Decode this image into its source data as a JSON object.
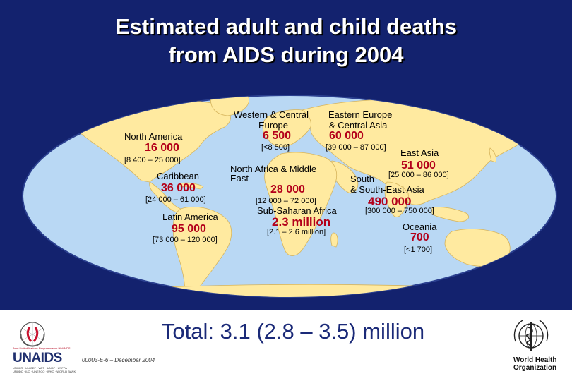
{
  "title": {
    "line1": "Estimated adult and child deaths",
    "line2": "from AIDS during 2004"
  },
  "regions": {
    "north_america": {
      "name": "North America",
      "value": "16 000",
      "range": "[8 400 – 25 000]"
    },
    "caribbean": {
      "name": "Caribbean",
      "value": "36 000",
      "range": "[24 000 – 61 000]"
    },
    "latin_america": {
      "name": "Latin America",
      "value": "95 000",
      "range": "[73 000 – 120 000]"
    },
    "western_central_europe": {
      "name_line1": "Western & Central",
      "name_line2": "Europe",
      "value": "6 500",
      "range": "[<8 500]"
    },
    "eastern_europe_central_asia": {
      "name_line1": "Eastern Europe",
      "name_line2": "& Central Asia",
      "value": "60 000",
      "range": "[39 000 – 87 000]"
    },
    "east_asia": {
      "name": "East Asia",
      "value": "51 000",
      "range": "[25 000 – 86 000]"
    },
    "north_africa_middle_east": {
      "name_line1": "North Africa & Middle",
      "name_line2": "East",
      "value": "28 000",
      "range": "[12 000 – 72 000]"
    },
    "south_southeast_asia": {
      "name_line1": "South",
      "name_line2": "& South-East Asia",
      "value": "490 000",
      "range": "[300 000 – 750 000]"
    },
    "sub_saharan_africa": {
      "name": "Sub-Saharan Africa",
      "value": "2.3 million",
      "range": "[2.1 – 2.6 million]"
    },
    "oceania": {
      "name": "Oceania",
      "value": "700",
      "range": "[<1 700]"
    }
  },
  "footer": {
    "total": "Total: 3.1 (2.8 – 3.5) million",
    "doc_ref": "00003-E-6 – December 2004"
  },
  "logos": {
    "unaids_word": "UNAIDS",
    "unaids_tagline": "Joint United Nations Programme on HIV/AIDS",
    "unaids_sponsors": "UNHCR · UNICEF · WFP · UNDP · UNFPA UNODC · ILO · UNESCO · WHO · WORLD BANK",
    "who_line1": "World Health",
    "who_line2": "Organization"
  },
  "colors": {
    "background_navy": "#13226e",
    "land": "#ffeaa0",
    "ocean": "#b9d8f4",
    "value_red": "#b3001a",
    "total_blue": "#1b2a78"
  }
}
